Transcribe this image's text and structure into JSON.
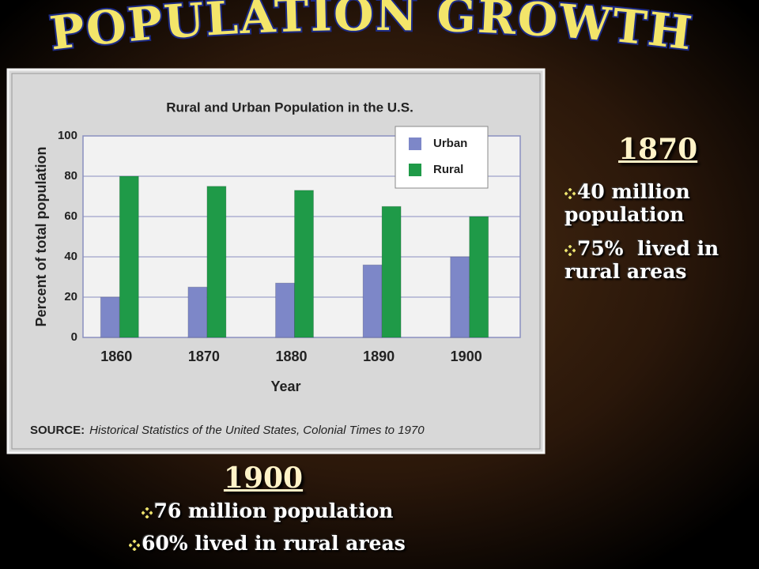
{
  "slide": {
    "title": "POPULATION GROWTH",
    "box_1870": {
      "heading": "1870",
      "bullets": [
        "40 million population",
        "75%  lived in rural areas"
      ]
    },
    "box_1900": {
      "heading": "1900",
      "bullets": [
        "76 million population",
        "60% lived in rural areas"
      ]
    }
  },
  "chart_data": {
    "type": "bar",
    "title": "Rural and Urban Population in the U.S.",
    "x_label": "Year",
    "y_label": "Percent of total population",
    "source_label": "SOURCE:",
    "source": "Historical Statistics of the United States, Colonial Times to 1970",
    "categories": [
      "1860",
      "1870",
      "1880",
      "1890",
      "1900"
    ],
    "series": [
      {
        "name": "Urban",
        "color": "#7d87c8",
        "values": [
          20,
          25,
          27,
          36,
          40
        ]
      },
      {
        "name": "Rural",
        "color": "#1f9a48",
        "values": [
          80,
          75,
          73,
          65,
          60
        ]
      }
    ],
    "ylim": [
      0,
      100
    ],
    "yticks": [
      0,
      20,
      40,
      60,
      80,
      100
    ],
    "grid": true,
    "legend": "upper right"
  }
}
